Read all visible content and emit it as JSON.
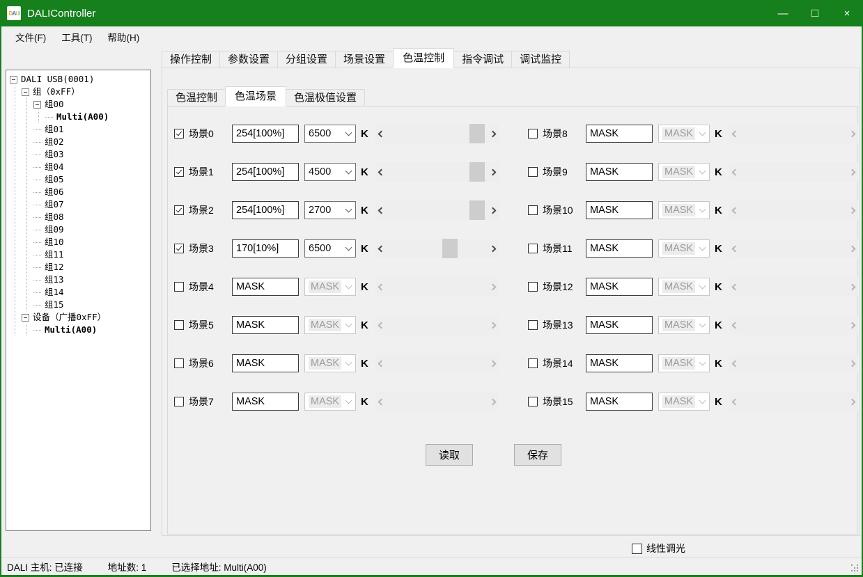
{
  "titlebar": {
    "title": "DALIController",
    "icon_letters": [
      "D",
      "A",
      "L",
      "I"
    ],
    "controls": {
      "minimize": "—",
      "maximize": "□",
      "close": "×"
    }
  },
  "menu": {
    "items": [
      "文件(F)",
      "工具(T)",
      "帮助(H)"
    ]
  },
  "tree": {
    "items": [
      {
        "label": "DALI USB(0001)",
        "level": 0,
        "expander": true
      },
      {
        "label": "组（0xFF）",
        "level": 1,
        "expander": true
      },
      {
        "label": "组00",
        "level": 2,
        "expander": true
      },
      {
        "label": "Multi(A00)",
        "level": 3,
        "bold": true
      },
      {
        "label": "组01",
        "level": 2
      },
      {
        "label": "组02",
        "level": 2
      },
      {
        "label": "组03",
        "level": 2
      },
      {
        "label": "组04",
        "level": 2
      },
      {
        "label": "组05",
        "level": 2
      },
      {
        "label": "组06",
        "level": 2
      },
      {
        "label": "组07",
        "level": 2
      },
      {
        "label": "组08",
        "level": 2
      },
      {
        "label": "组09",
        "level": 2
      },
      {
        "label": "组10",
        "level": 2
      },
      {
        "label": "组11",
        "level": 2
      },
      {
        "label": "组12",
        "level": 2
      },
      {
        "label": "组13",
        "level": 2
      },
      {
        "label": "组14",
        "level": 2
      },
      {
        "label": "组15",
        "level": 2
      },
      {
        "label": "设备（广播0xFF）",
        "level": 1,
        "expander": true
      },
      {
        "label": "Multi(A00)",
        "level": 2,
        "bold": true
      }
    ]
  },
  "main_tabs": {
    "items": [
      "操作控制",
      "参数设置",
      "分组设置",
      "场景设置",
      "色温控制",
      "指令调试",
      "调试监控"
    ],
    "selected": "色温控制"
  },
  "sub_tabs": {
    "items": [
      "色温控制",
      "色温场景",
      "色温极值设置"
    ],
    "selected": "色温场景"
  },
  "scenes": {
    "k_unit": "K",
    "rows": [
      {
        "label": "场景0",
        "checked": true,
        "enabled": true,
        "level": "254[100%]",
        "kelvin": "6500",
        "thumb_percent": 97
      },
      {
        "label": "场景1",
        "checked": true,
        "enabled": true,
        "level": "254[100%]",
        "kelvin": "4500",
        "thumb_percent": 97
      },
      {
        "label": "场景2",
        "checked": true,
        "enabled": true,
        "level": "254[100%]",
        "kelvin": "2700",
        "thumb_percent": 97
      },
      {
        "label": "场景3",
        "checked": true,
        "enabled": true,
        "level": "170[10%]",
        "kelvin": "6500",
        "thumb_percent": 65
      },
      {
        "label": "场景4",
        "checked": false,
        "enabled": false,
        "level": "MASK",
        "kelvin": "MASK",
        "thumb_percent": null
      },
      {
        "label": "场景5",
        "checked": false,
        "enabled": false,
        "level": "MASK",
        "kelvin": "MASK",
        "thumb_percent": null
      },
      {
        "label": "场景6",
        "checked": false,
        "enabled": false,
        "level": "MASK",
        "kelvin": "MASK",
        "thumb_percent": null
      },
      {
        "label": "场景7",
        "checked": false,
        "enabled": false,
        "level": "MASK",
        "kelvin": "MASK",
        "thumb_percent": null
      },
      {
        "label": "场景8",
        "checked": false,
        "enabled": false,
        "level": "MASK",
        "kelvin": "MASK",
        "thumb_percent": null
      },
      {
        "label": "场景9",
        "checked": false,
        "enabled": false,
        "level": "MASK",
        "kelvin": "MASK",
        "thumb_percent": null
      },
      {
        "label": "场景10",
        "checked": false,
        "enabled": false,
        "level": "MASK",
        "kelvin": "MASK",
        "thumb_percent": null
      },
      {
        "label": "场景11",
        "checked": false,
        "enabled": false,
        "level": "MASK",
        "kelvin": "MASK",
        "thumb_percent": null
      },
      {
        "label": "场景12",
        "checked": false,
        "enabled": false,
        "level": "MASK",
        "kelvin": "MASK",
        "thumb_percent": null
      },
      {
        "label": "场景13",
        "checked": false,
        "enabled": false,
        "level": "MASK",
        "kelvin": "MASK",
        "thumb_percent": null
      },
      {
        "label": "场景14",
        "checked": false,
        "enabled": false,
        "level": "MASK",
        "kelvin": "MASK",
        "thumb_percent": null
      },
      {
        "label": "场景15",
        "checked": false,
        "enabled": false,
        "level": "MASK",
        "kelvin": "MASK",
        "thumb_percent": null
      }
    ]
  },
  "buttons": {
    "read": "读取",
    "save": "保存"
  },
  "footer": {
    "linear_dimming": "线性调光",
    "linear_dimming_checked": false
  },
  "statusbar": {
    "host": "DALI 主机: 已连接",
    "address_count": "地址数: 1",
    "selected_address": "已选择地址: Multi(A00)"
  },
  "colors": {
    "titlebar_green": "#16801c",
    "scrollbar_thumb": "#cdcdcd",
    "button_face": "#e1e1e1"
  }
}
